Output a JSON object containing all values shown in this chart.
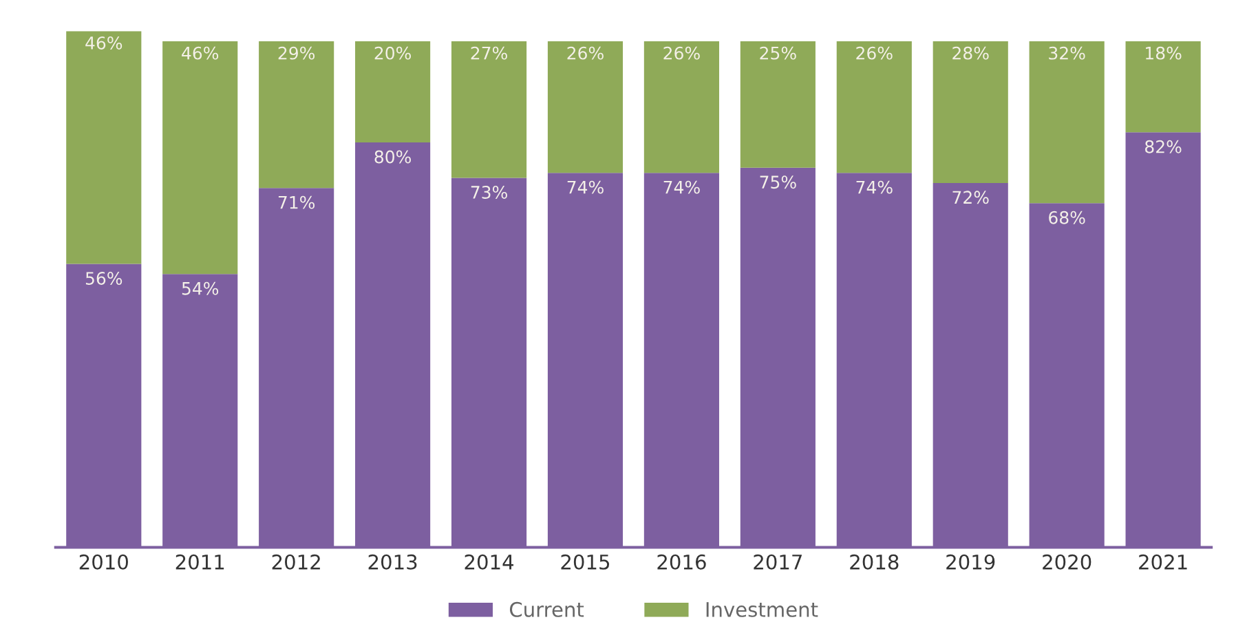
{
  "chart_data": {
    "type": "bar",
    "stacked": true,
    "categories": [
      "2010",
      "2011",
      "2012",
      "2013",
      "2014",
      "2015",
      "2016",
      "2017",
      "2018",
      "2019",
      "2020",
      "2021"
    ],
    "series": [
      {
        "name": "Current",
        "color": "#7d5fa0",
        "values": [
          56,
          54,
          71,
          80,
          73,
          74,
          74,
          75,
          74,
          72,
          68,
          82
        ],
        "value_labels": [
          "56%",
          "54%",
          "71%",
          "80%",
          "73%",
          "74%",
          "74%",
          "75%",
          "74%",
          "72%",
          "68%",
          "82%"
        ]
      },
      {
        "name": "Investment",
        "color": "#8faa58",
        "values": [
          46,
          46,
          29,
          20,
          27,
          26,
          26,
          25,
          26,
          28,
          32,
          18
        ],
        "value_labels": [
          "46%",
          "46%",
          "29%",
          "20%",
          "27%",
          "26%",
          "26%",
          "25%",
          "26%",
          "28%",
          "32%",
          "18%"
        ]
      }
    ],
    "tick_labels": "x",
    "legend": "bottom"
  }
}
